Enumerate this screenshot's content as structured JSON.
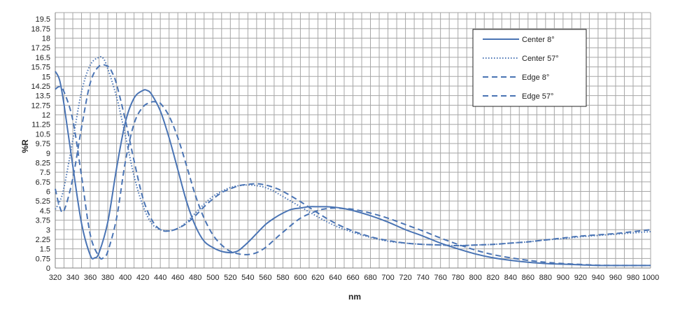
{
  "chart_data": {
    "type": "line",
    "title": "",
    "xlabel": "nm",
    "ylabel": "%R",
    "xlim": [
      320,
      1000
    ],
    "ylim": [
      0,
      20
    ],
    "x_ticks": [
      320,
      340,
      360,
      380,
      400,
      420,
      440,
      460,
      480,
      500,
      520,
      540,
      560,
      580,
      600,
      620,
      640,
      660,
      680,
      700,
      720,
      740,
      760,
      780,
      800,
      820,
      840,
      860,
      880,
      900,
      920,
      940,
      960,
      980,
      1000
    ],
    "y_ticks": [
      0,
      0.75,
      1.5,
      2.25,
      3,
      3.75,
      4.5,
      5.25,
      6,
      6.75,
      7.5,
      8.25,
      9,
      9.75,
      10.5,
      11.25,
      12,
      12.75,
      13.5,
      14.25,
      15,
      15.75,
      16.5,
      17.25,
      18,
      18.75,
      19.5
    ],
    "y_tick_labels": [
      "0",
      "0.75",
      "1.5",
      "2.25",
      "3",
      "3.75",
      "4.5",
      "5.25",
      "6",
      "6.75",
      "7.5",
      "8.25",
      "9",
      "9.75",
      "10.5",
      "11.25",
      "12",
      "12.75",
      "13.5",
      "14.25",
      "15",
      "15.75",
      "16.5",
      "17.25",
      "18",
      "18.75",
      "19.5"
    ],
    "grid": true,
    "legend_position": "top-right",
    "color": "#4a74b4",
    "series": [
      {
        "name": "Center 8°",
        "style": "solid",
        "x": [
          320,
          325,
          330,
          340,
          350,
          360,
          365,
          370,
          380,
          390,
          400,
          410,
          420,
          425,
          430,
          440,
          450,
          460,
          470,
          480,
          490,
          500,
          510,
          520,
          525,
          530,
          540,
          550,
          560,
          570,
          580,
          590,
          600,
          610,
          620,
          630,
          640,
          650,
          660,
          680,
          700,
          720,
          740,
          760,
          780,
          800,
          820,
          840,
          860,
          880,
          900,
          920,
          940,
          960,
          980,
          1000
        ],
        "y": [
          15.4,
          14.7,
          12.8,
          8.0,
          3.5,
          1.0,
          0.8,
          1.2,
          3.6,
          7.8,
          11.4,
          13.3,
          13.9,
          13.9,
          13.6,
          12.3,
          10.2,
          7.7,
          5.2,
          3.3,
          2.1,
          1.6,
          1.3,
          1.2,
          1.25,
          1.4,
          2.0,
          2.7,
          3.4,
          3.9,
          4.3,
          4.6,
          4.7,
          4.8,
          4.8,
          4.8,
          4.75,
          4.65,
          4.5,
          4.1,
          3.6,
          3.0,
          2.5,
          1.95,
          1.5,
          1.1,
          0.8,
          0.6,
          0.45,
          0.35,
          0.3,
          0.25,
          0.2,
          0.2,
          0.2,
          0.2
        ]
      },
      {
        "name": "Center 57°",
        "style": "dotted",
        "x": [
          320,
          325,
          330,
          340,
          350,
          360,
          370,
          375,
          380,
          390,
          400,
          410,
          420,
          430,
          440,
          450,
          460,
          470,
          480,
          490,
          500,
          510,
          520,
          530,
          540,
          550,
          560,
          570,
          580,
          600,
          620,
          640,
          660,
          680,
          700,
          720,
          740,
          760,
          780,
          800,
          820,
          840,
          860,
          880,
          900,
          920,
          940,
          960,
          980,
          1000
        ],
        "y": [
          4.6,
          5.2,
          6.3,
          10.0,
          13.8,
          15.9,
          16.5,
          16.4,
          15.6,
          13.4,
          10.4,
          7.2,
          4.9,
          3.5,
          3.0,
          2.9,
          3.1,
          3.6,
          4.3,
          5.0,
          5.6,
          6.0,
          6.3,
          6.45,
          6.5,
          6.45,
          6.3,
          6.0,
          5.6,
          4.8,
          4.0,
          3.3,
          2.8,
          2.4,
          2.1,
          1.95,
          1.85,
          1.8,
          1.75,
          1.8,
          1.85,
          1.95,
          2.05,
          2.2,
          2.3,
          2.45,
          2.55,
          2.65,
          2.75,
          2.85
        ]
      },
      {
        "name": "Edge 8°",
        "style": "dashed",
        "x": [
          320,
          325,
          330,
          340,
          350,
          360,
          370,
          375,
          380,
          390,
          400,
          410,
          420,
          430,
          435,
          440,
          450,
          460,
          470,
          480,
          490,
          500,
          510,
          520,
          530,
          540,
          550,
          560,
          570,
          580,
          600,
          620,
          630,
          640,
          650,
          660,
          680,
          700,
          720,
          740,
          760,
          780,
          800,
          820,
          840,
          860,
          880,
          900,
          920,
          940,
          960,
          980,
          1000
        ],
        "y": [
          14.0,
          14.2,
          13.8,
          11.6,
          7.2,
          2.6,
          0.9,
          0.8,
          1.3,
          3.9,
          8.3,
          11.3,
          12.6,
          13.0,
          13.0,
          12.9,
          11.9,
          10.2,
          8.0,
          5.7,
          3.9,
          2.6,
          1.8,
          1.3,
          1.1,
          1.05,
          1.2,
          1.6,
          2.2,
          2.8,
          3.9,
          4.5,
          4.65,
          4.7,
          4.65,
          4.6,
          4.3,
          3.9,
          3.4,
          2.9,
          2.35,
          1.85,
          1.4,
          1.05,
          0.8,
          0.6,
          0.45,
          0.35,
          0.28,
          0.22,
          0.2,
          0.2,
          0.2
        ]
      },
      {
        "name": "Edge 57°",
        "style": "dashed",
        "x": [
          320,
          325,
          330,
          340,
          350,
          360,
          370,
          380,
          385,
          390,
          400,
          410,
          420,
          430,
          440,
          450,
          460,
          470,
          480,
          490,
          500,
          510,
          520,
          530,
          540,
          550,
          560,
          570,
          580,
          600,
          620,
          640,
          660,
          680,
          700,
          720,
          740,
          760,
          780,
          800,
          820,
          840,
          860,
          880,
          900,
          920,
          940,
          960,
          980,
          1000
        ],
        "y": [
          6.2,
          4.8,
          4.5,
          7.0,
          11.0,
          14.5,
          15.8,
          15.8,
          15.3,
          14.4,
          11.6,
          8.4,
          5.5,
          3.8,
          3.0,
          2.9,
          3.1,
          3.5,
          4.1,
          4.8,
          5.4,
          5.9,
          6.2,
          6.45,
          6.55,
          6.6,
          6.5,
          6.3,
          6.0,
          5.2,
          4.3,
          3.5,
          2.9,
          2.45,
          2.15,
          1.95,
          1.85,
          1.8,
          1.75,
          1.8,
          1.85,
          1.95,
          2.05,
          2.2,
          2.35,
          2.5,
          2.6,
          2.7,
          2.85,
          3.0
        ]
      }
    ]
  }
}
